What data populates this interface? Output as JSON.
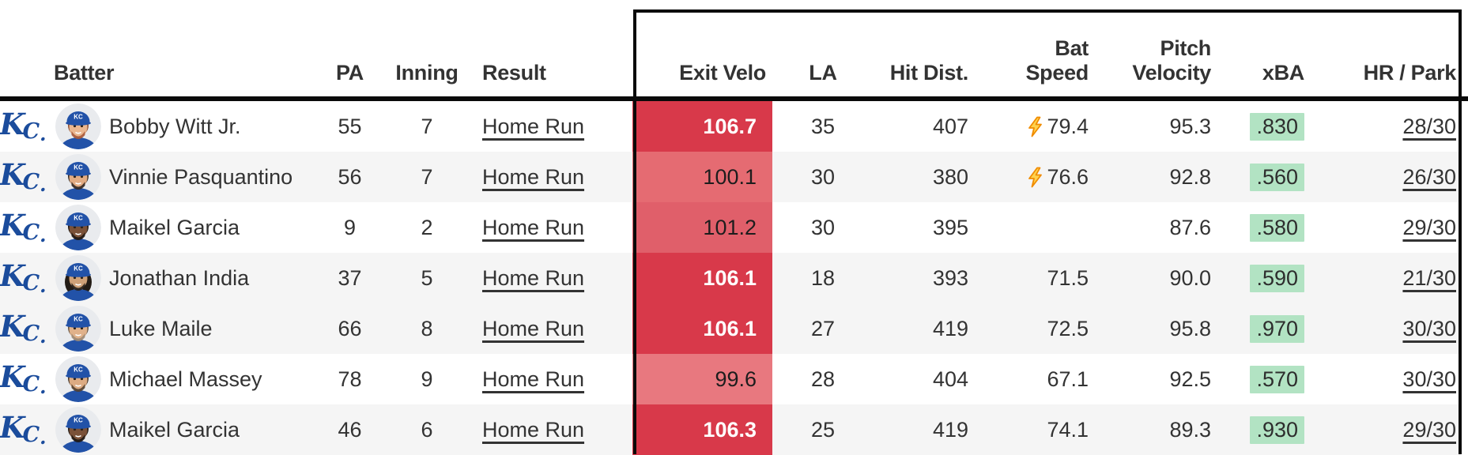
{
  "table": {
    "team_logo": "KC",
    "columns": {
      "batter": "Batter",
      "pa": "PA",
      "inning": "Inning",
      "result": "Result",
      "exit_velo": "Exit Velo",
      "la": "LA",
      "hit_dist": "Hit Dist.",
      "bat_speed": "Bat\nSpeed",
      "pitch_velocity": "Pitch\nVelocity",
      "xba": "xBA",
      "hr_park": "HR / Park"
    },
    "rows": [
      {
        "batter": "Bobby Witt Jr.",
        "pa": "55",
        "inning": "7",
        "result": "Home Run",
        "exit_velo": "106.7",
        "la": "35",
        "hit_dist": "407",
        "bat_speed": "79.4",
        "bat_speed_boost": true,
        "pitch_velocity": "95.3",
        "xba": ".830",
        "hr_park": "28/30",
        "row_bg": "#ffffff",
        "exit_velo_bg": "#d8394a",
        "exit_velo_text": "white",
        "avatar": {
          "skin": "#eab68f",
          "beard": "#a8593a",
          "hair": "#8a4b2e",
          "long_hair": false
        }
      },
      {
        "batter": "Vinnie Pasquantino",
        "pa": "56",
        "inning": "7",
        "result": "Home Run",
        "exit_velo": "100.1",
        "la": "30",
        "hit_dist": "380",
        "bat_speed": "76.6",
        "bat_speed_boost": true,
        "pitch_velocity": "92.8",
        "xba": ".560",
        "hr_park": "26/30",
        "row_bg": "#f5f5f5",
        "exit_velo_bg": "#e56b72",
        "exit_velo_text": "dark",
        "avatar": {
          "skin": "#e2ab82",
          "beard": "#332822",
          "hair": "#2e241e",
          "long_hair": false
        }
      },
      {
        "batter": "Maikel Garcia",
        "pa": "9",
        "inning": "2",
        "result": "Home Run",
        "exit_velo": "101.2",
        "la": "30",
        "hit_dist": "395",
        "bat_speed": "",
        "bat_speed_boost": false,
        "pitch_velocity": "87.6",
        "xba": ".580",
        "hr_park": "29/30",
        "row_bg": "#ffffff",
        "exit_velo_bg": "#e05f6a",
        "exit_velo_text": "dark",
        "avatar": {
          "skin": "#7a5138",
          "beard": "#1f1712",
          "hair": "#1a130e",
          "long_hair": false
        }
      },
      {
        "batter": "Jonathan India",
        "pa": "37",
        "inning": "5",
        "result": "Home Run",
        "exit_velo": "106.1",
        "la": "18",
        "hit_dist": "393",
        "bat_speed": "71.5",
        "bat_speed_boost": false,
        "pitch_velocity": "90.0",
        "xba": ".590",
        "hr_park": "21/30",
        "row_bg": "#f5f5f5",
        "exit_velo_bg": "#d8394a",
        "exit_velo_text": "white",
        "avatar": {
          "skin": "#cfa178",
          "beard": "#26201b",
          "hair": "#231c16",
          "long_hair": true
        }
      },
      {
        "batter": "Luke Maile",
        "pa": "66",
        "inning": "8",
        "result": "Home Run",
        "exit_velo": "106.1",
        "la": "27",
        "hit_dist": "419",
        "bat_speed": "72.5",
        "bat_speed_boost": false,
        "pitch_velocity": "95.8",
        "xba": ".970",
        "hr_park": "30/30",
        "row_bg": "#f5f5f5",
        "exit_velo_bg": "#d8394a",
        "exit_velo_text": "white",
        "avatar": {
          "skin": "#e0b18a",
          "beard": "#9c8a74",
          "hair": "#5f4f3f",
          "long_hair": false
        }
      },
      {
        "batter": "Michael Massey",
        "pa": "78",
        "inning": "9",
        "result": "Home Run",
        "exit_velo": "99.6",
        "la": "28",
        "hit_dist": "404",
        "bat_speed": "67.1",
        "bat_speed_boost": false,
        "pitch_velocity": "92.5",
        "xba": ".570",
        "hr_park": "30/30",
        "row_bg": "#ffffff",
        "exit_velo_bg": "#e8787f",
        "exit_velo_text": "dark",
        "avatar": {
          "skin": "#dcab83",
          "beard": "#53402f",
          "hair": "#3e2f22",
          "long_hair": false
        }
      },
      {
        "batter": "Maikel Garcia",
        "pa": "46",
        "inning": "6",
        "result": "Home Run",
        "exit_velo": "106.3",
        "la": "25",
        "hit_dist": "419",
        "bat_speed": "74.1",
        "bat_speed_boost": false,
        "pitch_velocity": "89.3",
        "xba": ".930",
        "hr_park": "29/30",
        "row_bg": "#f5f5f5",
        "exit_velo_bg": "#d8394a",
        "exit_velo_text": "white",
        "avatar": {
          "skin": "#7a5138",
          "beard": "#1f1712",
          "hair": "#1a130e",
          "long_hair": false
        }
      }
    ]
  },
  "colors": {
    "exit_velo_hot": "#d8394a",
    "xba_green": "#b2e3c3",
    "royals_blue": "#1b4c9c",
    "cap_blue": "#2252a8",
    "bolt_fill": "#ffd24d",
    "bolt_stroke": "#f08c00",
    "row_alt_gray": "#f5f5f5",
    "text": "#333333"
  }
}
